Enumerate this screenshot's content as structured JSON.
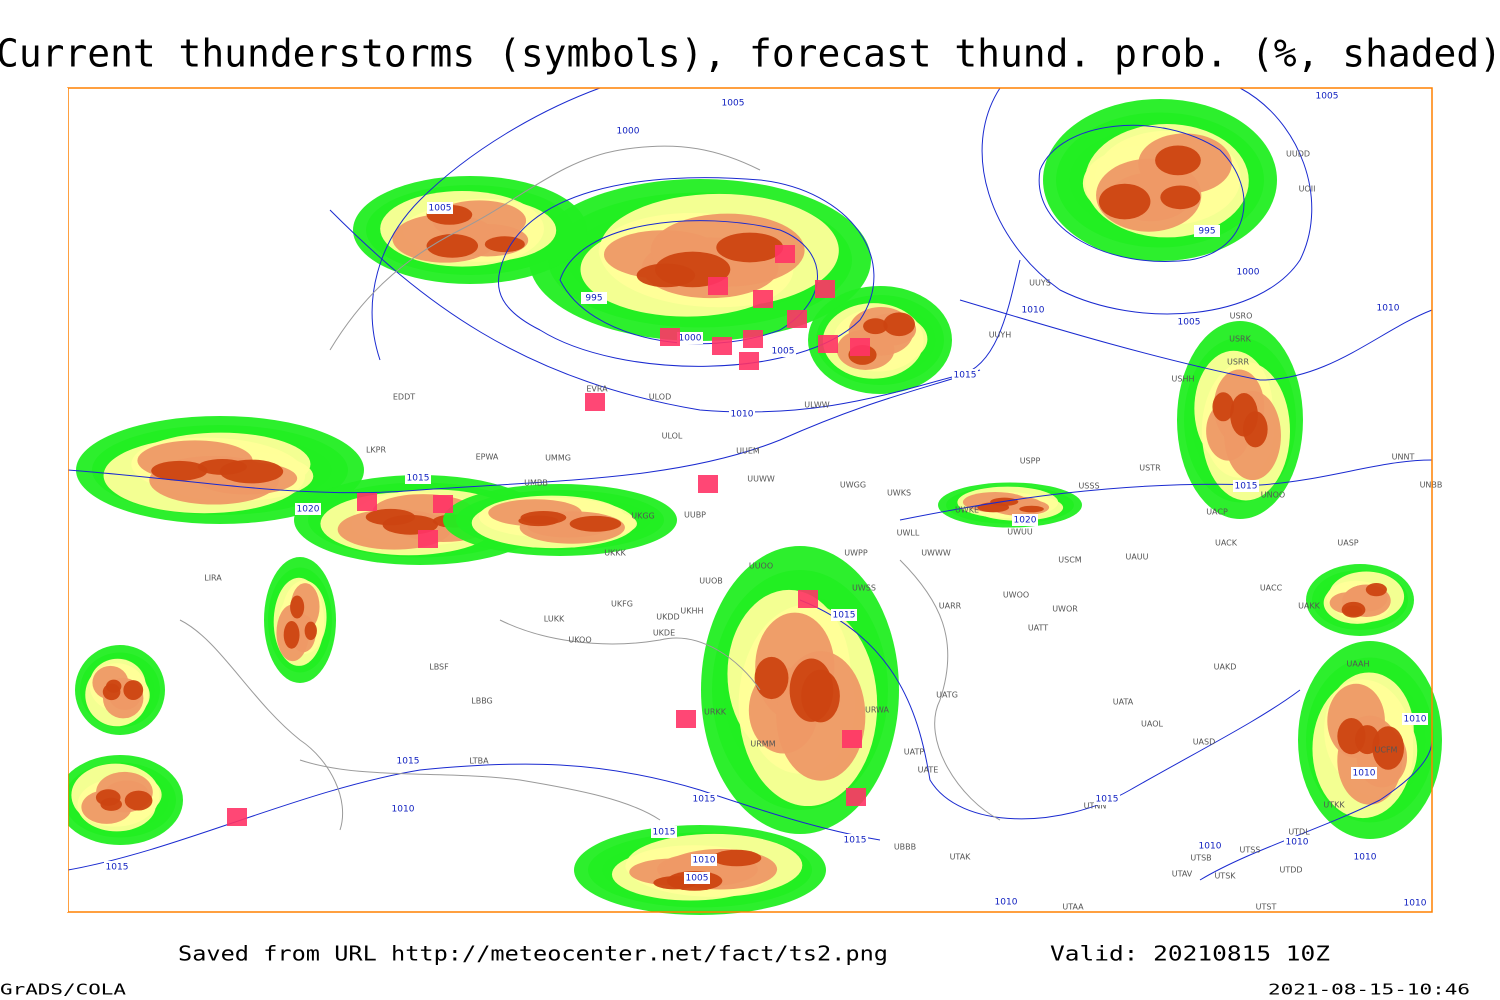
{
  "title": "Current thunderstorms (symbols), forecast thund. prob. (%, shaded)",
  "footer": {
    "source": "Saved from URL http://meteocenter.net/fact/ts2.png",
    "valid": "Valid: 20210815 10Z",
    "software": "GrADS/COLA",
    "timestamp": "2021-08-15-10:46"
  },
  "isobar_labels": [
    "1005",
    "1000",
    "1005",
    "995",
    "1000",
    "1005",
    "1010",
    "1015",
    "1010",
    "1005",
    "1010",
    "1000",
    "995",
    "1005",
    "1015",
    "1020",
    "1015",
    "1020",
    "1015",
    "1015",
    "1010",
    "1015",
    "1015",
    "1015",
    "1015",
    "1010",
    "1005",
    "1015",
    "1010",
    "1010",
    "1010",
    "1010",
    "1010",
    "1010",
    "1010"
  ],
  "station_labels": [
    "EDDT",
    "LKPR",
    "EPWA",
    "UMMG",
    "UMBB",
    "ULOD",
    "ULOL",
    "EVRA",
    "UUWW",
    "UUBP",
    "UKGG",
    "UKKK",
    "UUOO",
    "UUOB",
    "UKHH",
    "UKDD",
    "UKDE",
    "UKFG",
    "LUKK",
    "UKOO",
    "LBSF",
    "LBBG",
    "LTBA",
    "LIRA",
    "UWGG",
    "UWKS",
    "UWPP",
    "UWSS",
    "UARR",
    "UWOO",
    "UWOR",
    "UATT",
    "USCM",
    "UAUU",
    "USSS",
    "USTR",
    "USPP",
    "UACK",
    "UACP",
    "UNOO",
    "UNNT",
    "UNBB",
    "UASP",
    "UACC",
    "UAKK",
    "UAKD",
    "UAAH",
    "UATG",
    "UATA",
    "UAOL",
    "UASD",
    "UATE",
    "UATP",
    "UTNN",
    "UTAK",
    "UBBB",
    "USHH",
    "USRR",
    "USRK",
    "USRO",
    "UUYH",
    "ULWW",
    "UUEM",
    "UCFM",
    "UTSB",
    "UTAV",
    "UTSK",
    "UTSS",
    "UTAA",
    "UTST",
    "UTDL",
    "UTDD",
    "UTKK",
    "URKK",
    "URWA",
    "URMM",
    "UUDD",
    "UOII",
    "UUYS",
    "UWWW",
    "UWLL",
    "UWKE",
    "UWUU"
  ]
}
